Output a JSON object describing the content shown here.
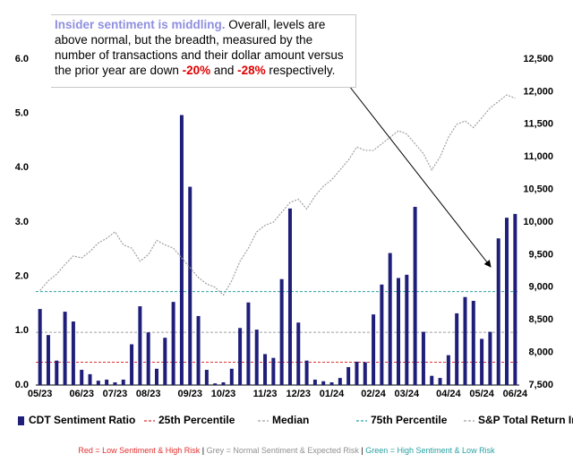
{
  "chart_data": {
    "type": "bar",
    "categories": [
      "05/23",
      null,
      null,
      null,
      null,
      "06/23",
      null,
      null,
      null,
      "07/23",
      null,
      null,
      null,
      "08/23",
      null,
      null,
      null,
      null,
      "09/23",
      null,
      null,
      null,
      "10/23",
      null,
      null,
      null,
      null,
      "11/23",
      null,
      null,
      null,
      "12/23",
      null,
      null,
      null,
      "01/24",
      null,
      null,
      null,
      null,
      "02/24",
      null,
      null,
      null,
      "03/24",
      null,
      null,
      null,
      null,
      "04/24",
      null,
      null,
      null,
      "05/24",
      null,
      null,
      null,
      "06/24"
    ],
    "series": [
      {
        "name": "CDT Sentiment Ratio",
        "color": "#1f1f7a",
        "values": [
          1.4,
          0.92,
          0.45,
          1.35,
          1.17,
          0.28,
          0.2,
          0.08,
          0.1,
          0.05,
          0.1,
          0.75,
          1.45,
          0.97,
          0.3,
          0.87,
          1.53,
          4.97,
          3.65,
          1.27,
          0.28,
          0.03,
          0.05,
          0.3,
          1.05,
          1.52,
          1.02,
          0.57,
          0.5,
          1.95,
          3.25,
          1.15,
          0.45,
          0.1,
          0.07,
          0.05,
          0.13,
          0.33,
          0.43,
          0.42,
          1.3,
          1.85,
          2.43,
          1.97,
          2.03,
          3.28,
          0.98,
          0.17,
          0.13,
          0.55,
          1.32,
          1.62,
          1.55,
          0.85,
          0.98,
          2.7,
          3.08,
          3.15
        ]
      },
      {
        "name": "S&P Total Return Index",
        "color": "#a0a0a0",
        "axis": "y2",
        "values": [
          8950,
          9100,
          9200,
          9350,
          9480,
          9450,
          9550,
          9680,
          9750,
          9850,
          9650,
          9600,
          9400,
          9500,
          9720,
          9650,
          9600,
          9450,
          9300,
          9150,
          9050,
          9000,
          8880,
          9100,
          9400,
          9600,
          9850,
          9950,
          10000,
          10150,
          10300,
          10350,
          10200,
          10400,
          10550,
          10650,
          10800,
          10950,
          11150,
          11100,
          11100,
          11200,
          11300,
          11400,
          11350,
          11200,
          11050,
          10800,
          11000,
          11300,
          11500,
          11550,
          11450,
          11600,
          11750,
          11850,
          11950,
          11900
        ]
      }
    ],
    "reference_lines": [
      {
        "name": "25th Percentile",
        "color": "#e03030",
        "value": 0.42
      },
      {
        "name": "Median",
        "color": "#a0a0a0",
        "value": 0.97
      },
      {
        "name": "75th Percentile",
        "color": "#2aa0a0",
        "value": 1.72
      }
    ],
    "ylim": [
      0,
      6
    ],
    "yticks": [
      {
        "value": 0,
        "label": "0.0"
      },
      {
        "value": 1,
        "label": "1.0"
      },
      {
        "value": 2,
        "label": "2.0"
      },
      {
        "value": 3,
        "label": "3.0"
      },
      {
        "value": 4,
        "label": "4.0"
      },
      {
        "value": 5,
        "label": "5.0"
      },
      {
        "value": 6,
        "label": "6.0"
      }
    ],
    "y2lim": [
      7500,
      12500
    ],
    "y2ticks": [
      {
        "value": 7500,
        "label": "7,500"
      },
      {
        "value": 8000,
        "label": "8,000"
      },
      {
        "value": 8500,
        "label": "8,500"
      },
      {
        "value": 9000,
        "label": "9,000"
      },
      {
        "value": 9500,
        "label": "9,500"
      },
      {
        "value": 10000,
        "label": "10,000"
      },
      {
        "value": 10500,
        "label": "10,500"
      },
      {
        "value": 11000,
        "label": "11,000"
      },
      {
        "value": 11500,
        "label": "11,500"
      },
      {
        "value": 12000,
        "label": "12,000"
      },
      {
        "value": 12500,
        "label": "12,500"
      }
    ],
    "grid": false,
    "annotation": [
      "Insider sentiment is middling.",
      " Overall, levels are above normal, but the breadth, measured by the number of transactions and their dollar amount versus the prior year are down ",
      "-20%",
      " and ",
      "-28%",
      " respectively."
    ],
    "footnote": [
      {
        "text": "Red = Low Sentiment & High Risk",
        "color": "#e03030"
      },
      {
        "text": " | ",
        "color": "#000000"
      },
      {
        "text": "Grey = Normal Sentiment & Expected Risk",
        "color": "#909090"
      },
      {
        "text": " | ",
        "color": "#000000"
      },
      {
        "text": "Green = High Sentiment & Low Risk",
        "color": "#2aa0a0"
      }
    ]
  }
}
